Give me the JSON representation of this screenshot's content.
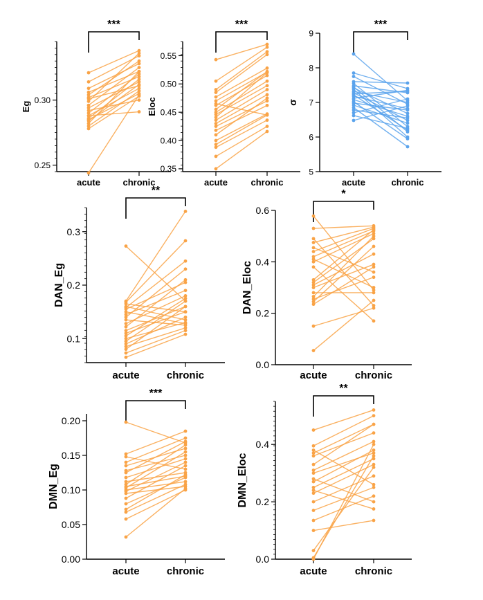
{
  "chart_data": [
    {
      "id": "eg",
      "type": "line",
      "ylabel": "Eg",
      "categories": [
        "acute",
        "chronic"
      ],
      "ylim": [
        0.245,
        0.345
      ],
      "yticks": [
        0.25,
        0.3
      ],
      "ytick_labels": [
        "0.25",
        "0.30"
      ],
      "significance": "***",
      "color": "#F9A346",
      "series": [
        {
          "values": [
            0.321,
            0.338
          ]
        },
        {
          "values": [
            0.314,
            0.334
          ]
        },
        {
          "values": [
            0.309,
            0.328
          ]
        },
        {
          "values": [
            0.306,
            0.322
          ]
        },
        {
          "values": [
            0.304,
            0.33
          ]
        },
        {
          "values": [
            0.302,
            0.318
          ]
        },
        {
          "values": [
            0.301,
            0.311
          ]
        },
        {
          "values": [
            0.299,
            0.336
          ]
        },
        {
          "values": [
            0.296,
            0.325
          ]
        },
        {
          "values": [
            0.294,
            0.314
          ]
        },
        {
          "values": [
            0.29,
            0.32
          ]
        },
        {
          "values": [
            0.288,
            0.309
          ]
        },
        {
          "values": [
            0.286,
            0.316
          ]
        },
        {
          "values": [
            0.285,
            0.305
          ]
        },
        {
          "values": [
            0.284,
            0.312
          ]
        },
        {
          "values": [
            0.282,
            0.322
          ]
        },
        {
          "values": [
            0.28,
            0.307
          ]
        },
        {
          "values": [
            0.278,
            0.303
          ]
        },
        {
          "values": [
            0.292,
            0.3
          ]
        },
        {
          "values": [
            0.288,
            0.291
          ]
        },
        {
          "values": [
            0.244,
            0.304
          ]
        }
      ]
    },
    {
      "id": "eloc",
      "type": "line",
      "ylabel": "Eloc",
      "categories": [
        "acute",
        "chronic"
      ],
      "ylim": [
        0.345,
        0.575
      ],
      "yticks": [
        0.35,
        0.4,
        0.45,
        0.5,
        0.55
      ],
      "ytick_labels": [
        "0.35",
        "0.40",
        "0.45",
        "0.50",
        "0.55"
      ],
      "significance": "***",
      "color": "#F9A346",
      "series": [
        {
          "values": [
            0.543,
            0.57
          ]
        },
        {
          "values": [
            0.505,
            0.565
          ]
        },
        {
          "values": [
            0.49,
            0.557
          ]
        },
        {
          "values": [
            0.485,
            0.552
          ]
        },
        {
          "values": [
            0.477,
            0.528
          ]
        },
        {
          "values": [
            0.47,
            0.521
          ]
        },
        {
          "values": [
            0.462,
            0.515
          ]
        },
        {
          "values": [
            0.455,
            0.522
          ]
        },
        {
          "values": [
            0.45,
            0.505
          ]
        },
        {
          "values": [
            0.446,
            0.497
          ]
        },
        {
          "values": [
            0.441,
            0.52
          ]
        },
        {
          "values": [
            0.436,
            0.49
          ]
        },
        {
          "values": [
            0.43,
            0.481
          ]
        },
        {
          "values": [
            0.425,
            0.47
          ]
        },
        {
          "values": [
            0.418,
            0.462
          ]
        },
        {
          "values": [
            0.41,
            0.475
          ]
        },
        {
          "values": [
            0.4,
            0.447
          ]
        },
        {
          "values": [
            0.393,
            0.445
          ]
        },
        {
          "values": [
            0.388,
            0.436
          ]
        },
        {
          "values": [
            0.372,
            0.425
          ]
        },
        {
          "values": [
            0.35,
            0.416
          ]
        },
        {
          "values": [
            0.465,
            0.445
          ]
        }
      ]
    },
    {
      "id": "sigma",
      "type": "line",
      "ylabel": "σ",
      "categories": [
        "acute",
        "chronic"
      ],
      "ylim": [
        5,
        9
      ],
      "yticks": [
        5,
        6,
        7,
        8,
        9
      ],
      "ytick_labels": [
        "5",
        "6",
        "7",
        "8",
        "9"
      ],
      "significance": "***",
      "color": "#5AA3EC",
      "series": [
        {
          "values": [
            8.4,
            7.05
          ]
        },
        {
          "values": [
            7.85,
            7.4
          ]
        },
        {
          "values": [
            7.75,
            6.95
          ]
        },
        {
          "values": [
            7.6,
            7.56
          ]
        },
        {
          "values": [
            7.55,
            6.3
          ]
        },
        {
          "values": [
            7.48,
            7.28
          ]
        },
        {
          "values": [
            7.42,
            6.68
          ]
        },
        {
          "values": [
            7.38,
            6.0
          ]
        },
        {
          "values": [
            7.32,
            7.0
          ]
        },
        {
          "values": [
            7.28,
            6.48
          ]
        },
        {
          "values": [
            7.22,
            6.2
          ]
        },
        {
          "values": [
            7.18,
            6.82
          ]
        },
        {
          "values": [
            7.12,
            7.35
          ]
        },
        {
          "values": [
            7.08,
            6.6
          ]
        },
        {
          "values": [
            7.02,
            5.95
          ]
        },
        {
          "values": [
            6.98,
            6.78
          ]
        },
        {
          "values": [
            6.92,
            6.4
          ]
        },
        {
          "values": [
            6.85,
            5.72
          ]
        },
        {
          "values": [
            6.78,
            6.55
          ]
        },
        {
          "values": [
            6.7,
            7.1
          ]
        },
        {
          "values": [
            6.62,
            6.25
          ]
        },
        {
          "values": [
            6.48,
            6.9
          ]
        },
        {
          "values": [
            7.25,
            7.32
          ]
        },
        {
          "values": [
            7.45,
            6.15
          ]
        }
      ]
    },
    {
      "id": "dan-eg",
      "type": "line",
      "ylabel": "DAN_Eg",
      "categories": [
        "acute",
        "chronic"
      ],
      "ylim": [
        0.055,
        0.345
      ],
      "yticks": [
        0.1,
        0.2,
        0.3
      ],
      "ytick_labels": [
        "0.1",
        "0.2",
        "0.3"
      ],
      "significance": "**",
      "color": "#F9A346",
      "series": [
        {
          "values": [
            0.273,
            0.17
          ]
        },
        {
          "values": [
            0.17,
            0.338
          ]
        },
        {
          "values": [
            0.168,
            0.283
          ]
        },
        {
          "values": [
            0.165,
            0.15
          ]
        },
        {
          "values": [
            0.16,
            0.135
          ]
        },
        {
          "values": [
            0.158,
            0.245
          ]
        },
        {
          "values": [
            0.155,
            0.205
          ]
        },
        {
          "values": [
            0.15,
            0.128
          ]
        },
        {
          "values": [
            0.145,
            0.19
          ]
        },
        {
          "values": [
            0.14,
            0.23
          ]
        },
        {
          "values": [
            0.135,
            0.125
          ]
        },
        {
          "values": [
            0.128,
            0.18
          ]
        },
        {
          "values": [
            0.122,
            0.21
          ]
        },
        {
          "values": [
            0.115,
            0.16
          ]
        },
        {
          "values": [
            0.11,
            0.15
          ]
        },
        {
          "values": [
            0.105,
            0.175
          ]
        },
        {
          "values": [
            0.1,
            0.13
          ]
        },
        {
          "values": [
            0.095,
            0.17
          ]
        },
        {
          "values": [
            0.09,
            0.14
          ]
        },
        {
          "values": [
            0.085,
            0.12
          ]
        },
        {
          "values": [
            0.08,
            0.16
          ]
        },
        {
          "values": [
            0.073,
            0.115
          ]
        },
        {
          "values": [
            0.065,
            0.108
          ]
        }
      ]
    },
    {
      "id": "dan-eloc",
      "type": "line",
      "ylabel": "DAN_Eloc",
      "categories": [
        "acute",
        "chronic"
      ],
      "ylim": [
        0.0,
        0.6
      ],
      "yticks": [
        0.0,
        0.2,
        0.4,
        0.6
      ],
      "ytick_labels": [
        "0.0",
        "0.2",
        "0.4",
        "0.6"
      ],
      "significance": "*",
      "color": "#F9A346",
      "series": [
        {
          "values": [
            0.578,
            0.29
          ]
        },
        {
          "values": [
            0.53,
            0.54
          ]
        },
        {
          "values": [
            0.49,
            0.23
          ]
        },
        {
          "values": [
            0.475,
            0.535
          ]
        },
        {
          "values": [
            0.455,
            0.36
          ]
        },
        {
          "values": [
            0.44,
            0.53
          ]
        },
        {
          "values": [
            0.42,
            0.52
          ]
        },
        {
          "values": [
            0.41,
            0.3
          ]
        },
        {
          "values": [
            0.4,
            0.51
          ]
        },
        {
          "values": [
            0.38,
            0.17
          ]
        },
        {
          "values": [
            0.33,
            0.525
          ]
        },
        {
          "values": [
            0.32,
            0.49
          ]
        },
        {
          "values": [
            0.31,
            0.43
          ]
        },
        {
          "values": [
            0.3,
            0.39
          ]
        },
        {
          "values": [
            0.28,
            0.28
          ]
        },
        {
          "values": [
            0.265,
            0.5
          ]
        },
        {
          "values": [
            0.255,
            0.34
          ]
        },
        {
          "values": [
            0.245,
            0.46
          ]
        },
        {
          "values": [
            0.235,
            0.38
          ]
        },
        {
          "values": [
            0.15,
            0.22
          ]
        },
        {
          "values": [
            0.055,
            0.25
          ]
        }
      ]
    },
    {
      "id": "dmn-eg",
      "type": "line",
      "ylabel": "DMN_Eg",
      "categories": [
        "acute",
        "chronic"
      ],
      "ylim": [
        0.0,
        0.21
      ],
      "yticks": [
        0.0,
        0.05,
        0.1,
        0.15,
        0.2
      ],
      "ytick_labels": [
        "0.00",
        "0.05",
        "0.10",
        "0.15",
        "0.20"
      ],
      "significance": "***",
      "color": "#F9A346",
      "series": [
        {
          "values": [
            0.198,
            0.168
          ]
        },
        {
          "values": [
            0.152,
            0.185
          ]
        },
        {
          "values": [
            0.148,
            0.13
          ]
        },
        {
          "values": [
            0.14,
            0.175
          ]
        },
        {
          "values": [
            0.135,
            0.16
          ]
        },
        {
          "values": [
            0.128,
            0.15
          ]
        },
        {
          "values": [
            0.125,
            0.17
          ]
        },
        {
          "values": [
            0.118,
            0.145
          ]
        },
        {
          "values": [
            0.112,
            0.125
          ]
        },
        {
          "values": [
            0.108,
            0.165
          ]
        },
        {
          "values": [
            0.105,
            0.12
          ]
        },
        {
          "values": [
            0.103,
            0.155
          ]
        },
        {
          "values": [
            0.1,
            0.112
          ]
        },
        {
          "values": [
            0.098,
            0.14
          ]
        },
        {
          "values": [
            0.095,
            0.105
          ]
        },
        {
          "values": [
            0.088,
            0.135
          ]
        },
        {
          "values": [
            0.08,
            0.118
          ]
        },
        {
          "values": [
            0.072,
            0.122
          ]
        },
        {
          "values": [
            0.068,
            0.108
          ]
        },
        {
          "values": [
            0.058,
            0.1
          ]
        },
        {
          "values": [
            0.032,
            0.102
          ]
        }
      ]
    },
    {
      "id": "dmn-eloc",
      "type": "line",
      "ylabel": "DMN_Eloc",
      "categories": [
        "acute",
        "chronic"
      ],
      "ylim": [
        0.0,
        0.55
      ],
      "yticks": [
        0.0,
        0.2,
        0.4
      ],
      "ytick_labels": [
        "0.0",
        "0.2",
        "0.4"
      ],
      "significance": "**",
      "color": "#F9A346",
      "series": [
        {
          "values": [
            0.45,
            0.52
          ]
        },
        {
          "values": [
            0.395,
            0.5
          ]
        },
        {
          "values": [
            0.38,
            0.26
          ]
        },
        {
          "values": [
            0.37,
            0.47
          ]
        },
        {
          "values": [
            0.36,
            0.44
          ]
        },
        {
          "values": [
            0.33,
            0.47
          ]
        },
        {
          "values": [
            0.31,
            0.41
          ]
        },
        {
          "values": [
            0.3,
            0.37
          ]
        },
        {
          "values": [
            0.28,
            0.2
          ]
        },
        {
          "values": [
            0.27,
            0.38
          ]
        },
        {
          "values": [
            0.25,
            0.35
          ]
        },
        {
          "values": [
            0.24,
            0.175
          ]
        },
        {
          "values": [
            0.23,
            0.33
          ]
        },
        {
          "values": [
            0.2,
            0.29
          ]
        },
        {
          "values": [
            0.17,
            0.25
          ]
        },
        {
          "values": [
            0.135,
            0.22
          ]
        },
        {
          "values": [
            0.1,
            0.135
          ]
        },
        {
          "values": [
            0.03,
            0.32
          ]
        },
        {
          "values": [
            0.005,
            0.36
          ]
        },
        {
          "values": [
            0.0,
            0.4
          ]
        }
      ]
    }
  ]
}
